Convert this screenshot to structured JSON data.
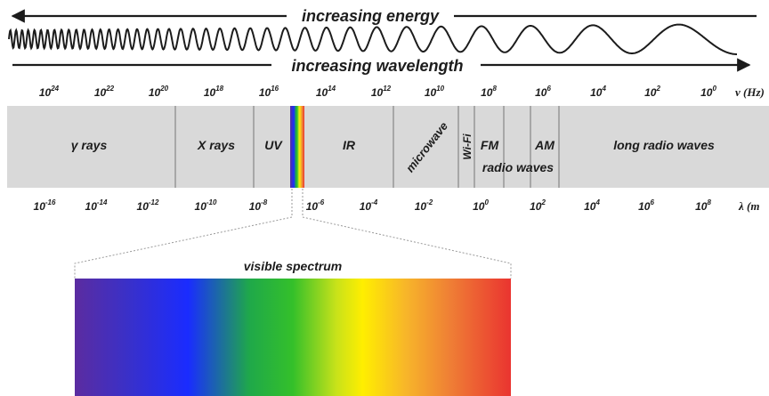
{
  "arrows": {
    "energy": "increasing energy",
    "wavelength": "increasing wavelength"
  },
  "frequency_axis": {
    "unit": "ν (Hz)",
    "ticks": [
      {
        "base": "10",
        "exp": "24"
      },
      {
        "base": "10",
        "exp": "22"
      },
      {
        "base": "10",
        "exp": "20"
      },
      {
        "base": "10",
        "exp": "18"
      },
      {
        "base": "10",
        "exp": "16"
      },
      {
        "base": "10",
        "exp": "14"
      },
      {
        "base": "10",
        "exp": "12"
      },
      {
        "base": "10",
        "exp": "10"
      },
      {
        "base": "10",
        "exp": "8"
      },
      {
        "base": "10",
        "exp": "6"
      },
      {
        "base": "10",
        "exp": "4"
      },
      {
        "base": "10",
        "exp": "2"
      },
      {
        "base": "10",
        "exp": "0"
      }
    ]
  },
  "wavelength_axis": {
    "unit": "λ (m",
    "ticks": [
      {
        "base": "10",
        "exp": "-16"
      },
      {
        "base": "10",
        "exp": "-14"
      },
      {
        "base": "10",
        "exp": "-12"
      },
      {
        "base": "10",
        "exp": "-10"
      },
      {
        "base": "10",
        "exp": "-8"
      },
      {
        "base": "10",
        "exp": "-6"
      },
      {
        "base": "10",
        "exp": "-4"
      },
      {
        "base": "10",
        "exp": "-2"
      },
      {
        "base": "10",
        "exp": "0"
      },
      {
        "base": "10",
        "exp": "2"
      },
      {
        "base": "10",
        "exp": "4"
      },
      {
        "base": "10",
        "exp": "6"
      },
      {
        "base": "10",
        "exp": "8"
      }
    ]
  },
  "bands": {
    "gamma": "γ rays",
    "xray": "X rays",
    "uv": "UV",
    "ir": "IR",
    "microwave": "microwave",
    "wifi": "Wi-Fi",
    "fm": "FM",
    "am": "AM",
    "radio_waves": "radio waves",
    "long_radio": "long radio waves"
  },
  "visible": {
    "label": "visible spectrum"
  },
  "colors": {
    "band_fill": "#d9d9d9",
    "divider": "#8c8c8c",
    "text": "#1c1c1c",
    "spectrum": [
      "#5b2ca0",
      "#3a30c8",
      "#1a2cff",
      "#1fa84a",
      "#34c02a",
      "#c8e21a",
      "#ffee00",
      "#f7b52a",
      "#ef7f35",
      "#ea3430"
    ]
  }
}
